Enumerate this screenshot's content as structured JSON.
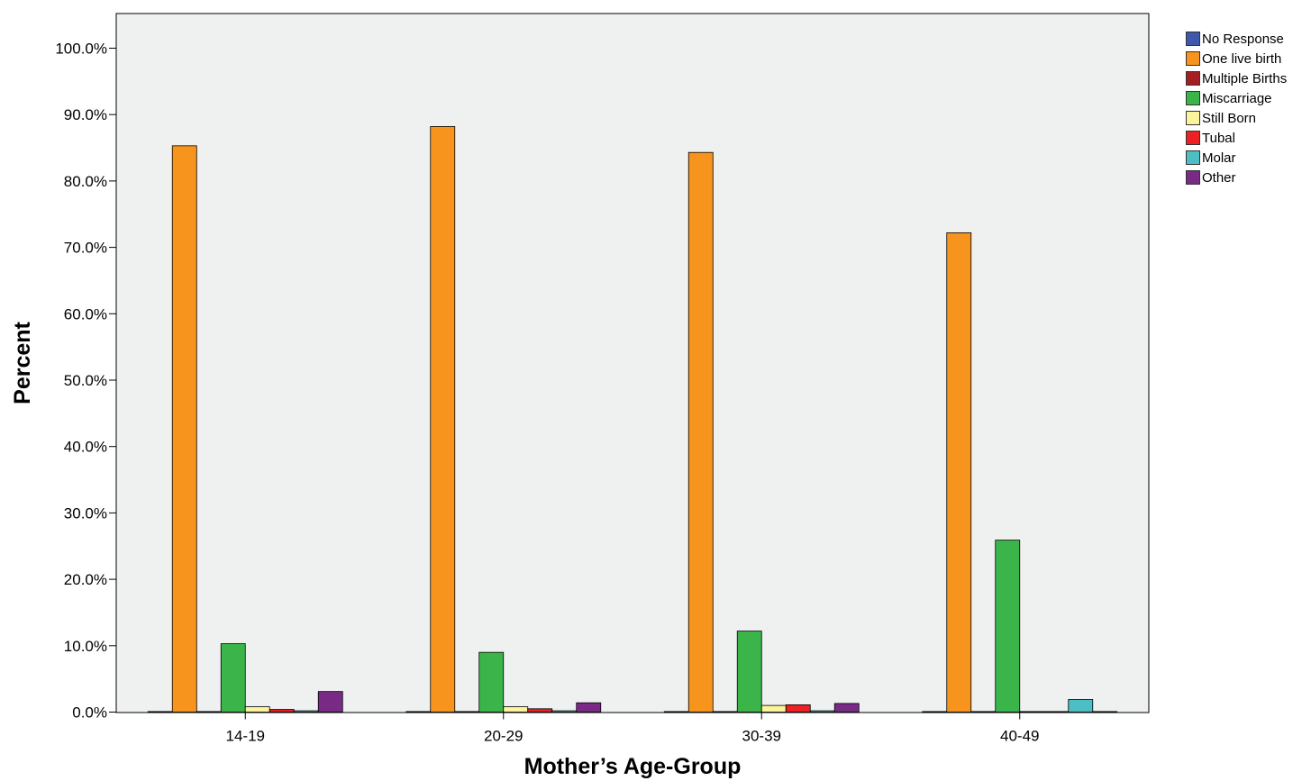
{
  "chart_data": {
    "type": "bar",
    "xlabel": "Mother’s Age-Group",
    "ylabel": "Percent",
    "ylim": [
      0,
      105
    ],
    "yticks": [
      0,
      10,
      20,
      30,
      40,
      50,
      60,
      70,
      80,
      90,
      100
    ],
    "ytick_labels": [
      "0.0%",
      "10.0%",
      "20.0%",
      "30.0%",
      "40.0%",
      "50.0%",
      "60.0%",
      "70.0%",
      "80.0%",
      "90.0%",
      "100.0%"
    ],
    "categories": [
      "14-19",
      "20-29",
      "30-39",
      "40-49"
    ],
    "legend_position": "top-right, outside plot",
    "grid": false,
    "plot_background": "#eff0f0",
    "series": [
      {
        "name": "No Response",
        "color": "#3e58ac",
        "values": [
          0,
          0,
          0,
          0
        ]
      },
      {
        "name": "One live birth",
        "color": "#f7941e",
        "values": [
          85.3,
          88.2,
          84.3,
          72.2
        ]
      },
      {
        "name": "Multiple Births",
        "color": "#a31f23",
        "values": [
          0,
          0,
          0,
          0
        ]
      },
      {
        "name": "Miscarriage",
        "color": "#3bb44a",
        "values": [
          10.3,
          9.0,
          12.2,
          25.9
        ]
      },
      {
        "name": "Still Born",
        "color": "#fbf49c",
        "values": [
          0.8,
          0.8,
          1.0,
          0
        ]
      },
      {
        "name": "Tubal",
        "color": "#ed2024",
        "values": [
          0.4,
          0.5,
          1.1,
          0
        ]
      },
      {
        "name": "Molar",
        "color": "#4cbec4",
        "values": [
          0.2,
          0.2,
          0.2,
          1.9
        ]
      },
      {
        "name": "Other",
        "color": "#792a84",
        "values": [
          3.1,
          1.4,
          1.3,
          0
        ]
      }
    ]
  }
}
